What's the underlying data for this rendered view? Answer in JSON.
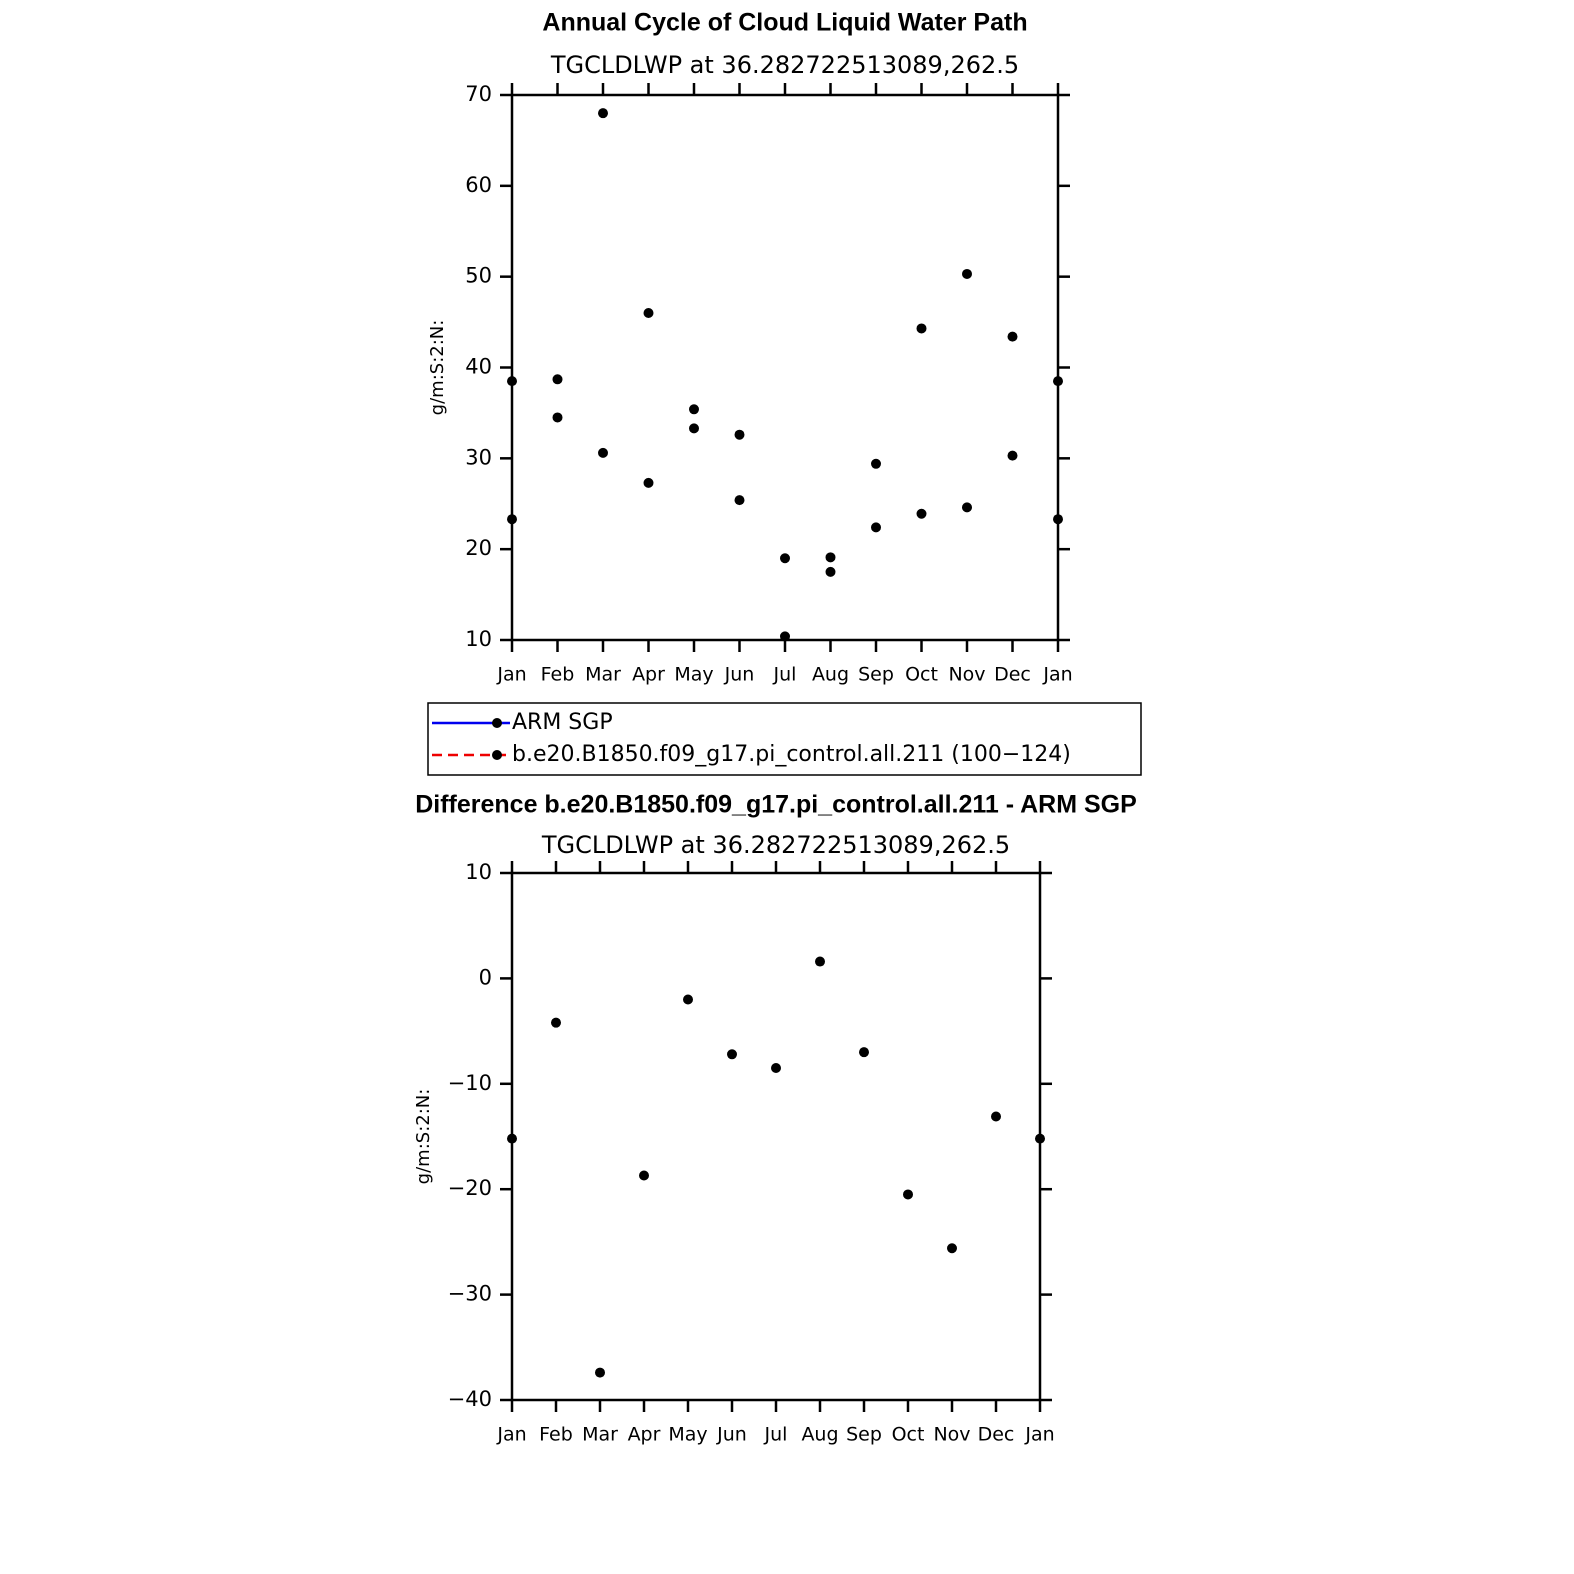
{
  "chart_data": [
    {
      "type": "line",
      "title": "Annual Cycle of Cloud Liquid Water Path",
      "subtitle": "TGCLDLWP  at  36.282722513089,262.5",
      "ylabel": "g/m:S:2:N:",
      "categories": [
        "Jan",
        "Feb",
        "Mar",
        "Apr",
        "May",
        "Jun",
        "Jul",
        "Aug",
        "Sep",
        "Oct",
        "Nov",
        "Dec",
        "Jan"
      ],
      "series": [
        {
          "name": "ARM SGP",
          "color": "#0000ee",
          "line_style": "solid",
          "marker": "circle",
          "values": [
            38.5,
            38.7,
            68.0,
            46.0,
            35.4,
            32.6,
            19.0,
            17.5,
            29.4,
            44.3,
            50.3,
            43.4,
            38.5
          ]
        },
        {
          "name": "b.e20.B1850.f09_g17.pi_control.all.211 (100−124)",
          "color": "#ee0000",
          "line_style": "dashed",
          "marker": "circle",
          "values": [
            23.3,
            34.5,
            30.6,
            27.3,
            33.3,
            25.4,
            10.4,
            19.1,
            22.4,
            23.9,
            24.6,
            30.3,
            23.3
          ]
        }
      ],
      "ylim": [
        10,
        70
      ],
      "yticks": [
        10,
        20,
        30,
        40,
        50,
        60,
        70
      ],
      "grid": false,
      "legend": "below"
    },
    {
      "type": "line",
      "title": "Difference b.e20.B1850.f09_g17.pi_control.all.211 - ARM SGP",
      "subtitle": "TGCLDLWP  at  36.282722513089,262.5",
      "ylabel": "g/m:S:2:N:",
      "categories": [
        "Jan",
        "Feb",
        "Mar",
        "Apr",
        "May",
        "Jun",
        "Jul",
        "Aug",
        "Sep",
        "Oct",
        "Nov",
        "Dec",
        "Jan"
      ],
      "series": [
        {
          "color": "#0000ee",
          "line_style": "solid",
          "marker": "circle",
          "values": [
            -15.2,
            -4.2,
            -37.4,
            -18.7,
            -2.0,
            -7.2,
            -8.5,
            1.6,
            -7.0,
            -20.5,
            -25.6,
            -13.1,
            -15.2
          ]
        }
      ],
      "ylim": [
        -40,
        10
      ],
      "yticks": [
        {
          "value": -40,
          "label": "−40"
        },
        {
          "value": -30,
          "label": "−30"
        },
        {
          "value": -20,
          "label": "−20"
        },
        {
          "value": -10,
          "label": "−10"
        },
        0,
        10
      ],
      "grid": false
    }
  ]
}
